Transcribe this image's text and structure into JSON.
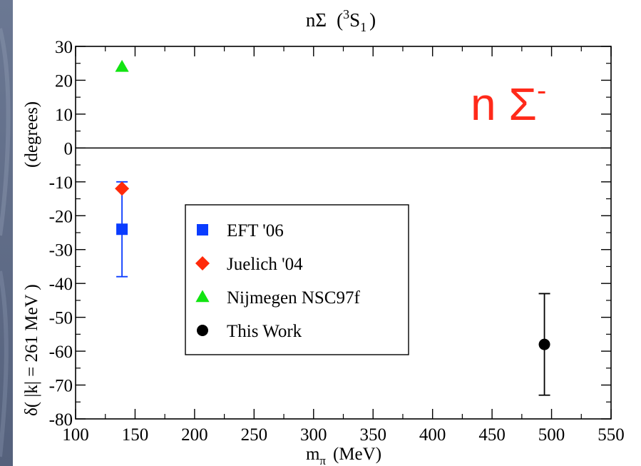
{
  "chart_data": {
    "type": "scatter",
    "title": {
      "main": "nΣ",
      "open": "(",
      "sup": "3",
      "letter": "S",
      "sub": "1",
      "close": ")"
    },
    "xlabel": {
      "main": "m",
      "sub": "π",
      "unit": "(MeV)"
    },
    "ylabel": {
      "main": "δ( |k| = 261 MeV )",
      "unit": "(degrees)"
    },
    "xlim": [
      100,
      550
    ],
    "ylim": [
      -80,
      30
    ],
    "x_ticks": [
      100,
      150,
      200,
      250,
      300,
      350,
      400,
      450,
      500,
      550
    ],
    "y_ticks": [
      30,
      20,
      10,
      0,
      -10,
      -20,
      -30,
      -40,
      -50,
      -60,
      -70,
      -80
    ],
    "x_tick_labels": [
      "100",
      "150",
      "200",
      "250",
      "300",
      "350",
      "400",
      "450",
      "500",
      "550"
    ],
    "y_tick_labels": [
      "30",
      "20",
      "10",
      "0",
      "-10",
      "-20",
      "-30",
      "-40",
      "-50",
      "-60",
      "-70",
      "-80"
    ],
    "zero_line": true,
    "grid": false,
    "legend_position": "center-left",
    "annotation": {
      "main": "n Σ",
      "sup": "-",
      "color": "#ff2a1a"
    },
    "series": [
      {
        "name": "EFT '06",
        "marker": "square",
        "color": "#0a3cff",
        "points": [
          {
            "x": 139,
            "y": -24,
            "err_low": -38,
            "err_high": -10
          }
        ]
      },
      {
        "name": "Juelich '04",
        "marker": "diamond",
        "color": "#ff2a0a",
        "points": [
          {
            "x": 139,
            "y": -12
          }
        ]
      },
      {
        "name": "Nijmegen  NSC97f",
        "marker": "triangle",
        "color": "#12e412",
        "points": [
          {
            "x": 139,
            "y": 24
          }
        ]
      },
      {
        "name": "This Work",
        "marker": "circle",
        "color": "#000000",
        "points": [
          {
            "x": 494,
            "y": -58,
            "err_low": -73,
            "err_high": -43
          }
        ]
      }
    ]
  }
}
